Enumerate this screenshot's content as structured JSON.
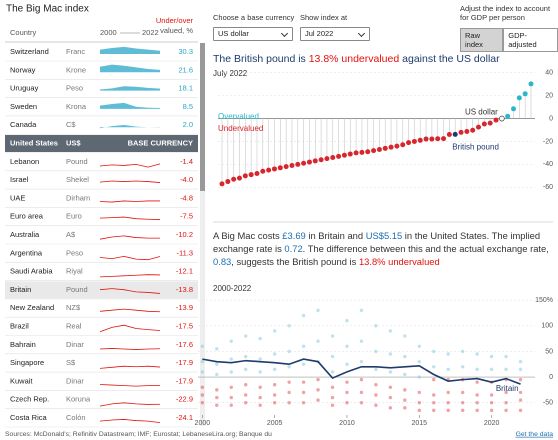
{
  "title": "The Big Mac index",
  "table": {
    "headers": {
      "country": "Country",
      "start": "2000",
      "end": "2022",
      "value_top": "Under/over",
      "value_bottom": "valued, %"
    },
    "base_row": 5,
    "highlight_row": 13,
    "over_color": "#2aa6c9",
    "under_color": "#e3120b",
    "rows": [
      {
        "country": "Switzerland",
        "currency": "Franc",
        "value": "30.3",
        "spark": [
          40,
          55,
          65,
          50,
          40,
          30
        ]
      },
      {
        "country": "Norway",
        "currency": "Krone",
        "value": "21.6",
        "spark": [
          50,
          70,
          60,
          45,
          30,
          22
        ]
      },
      {
        "country": "Uruguay",
        "currency": "Peso",
        "value": "18.1",
        "spark": [
          10,
          20,
          40,
          35,
          25,
          18
        ]
      },
      {
        "country": "Sweden",
        "currency": "Krona",
        "value": "8.5",
        "spark": [
          30,
          45,
          55,
          20,
          10,
          8
        ]
      },
      {
        "country": "Canada",
        "currency": "C$",
        "value": "2.0",
        "spark": [
          -10,
          10,
          20,
          5,
          0,
          2
        ]
      },
      {
        "country": "United States",
        "currency": "US$",
        "value": "BASE CURRENCY"
      },
      {
        "country": "Lebanon",
        "currency": "Pound",
        "value": "-1.4",
        "spark": [
          -20,
          -10,
          -15,
          -5,
          -30,
          -1
        ]
      },
      {
        "country": "Israel",
        "currency": "Shekel",
        "value": "-4.0",
        "spark": [
          0,
          10,
          5,
          10,
          5,
          -4
        ]
      },
      {
        "country": "UAE",
        "currency": "Dirham",
        "value": "-4.8",
        "spark": [
          -10,
          -15,
          -5,
          -10,
          -5,
          -5
        ]
      },
      {
        "country": "Euro area",
        "currency": "Euro",
        "value": "-7.5",
        "spark": [
          5,
          10,
          15,
          0,
          -5,
          -8
        ]
      },
      {
        "country": "Australia",
        "currency": "A$",
        "value": "-10.2",
        "spark": [
          -20,
          0,
          10,
          -5,
          -10,
          -10
        ]
      },
      {
        "country": "Argentina",
        "currency": "Peso",
        "value": "-11.3",
        "spark": [
          -20,
          -30,
          -10,
          -35,
          -40,
          -11
        ]
      },
      {
        "country": "Saudi Arabia",
        "currency": "Riyal",
        "value": "-12.1",
        "spark": [
          -30,
          -25,
          -20,
          -15,
          -10,
          -12
        ]
      },
      {
        "country": "Britain",
        "currency": "Pound",
        "value": "-13.8",
        "spark": [
          20,
          30,
          20,
          0,
          -5,
          -14
        ]
      },
      {
        "country": "New Zealand",
        "currency": "NZ$",
        "value": "-13.9",
        "spark": [
          -10,
          0,
          10,
          0,
          -10,
          -14
        ]
      },
      {
        "country": "Brazil",
        "currency": "Real",
        "value": "-17.5",
        "spark": [
          -30,
          10,
          30,
          0,
          -10,
          -18
        ]
      },
      {
        "country": "Bahrain",
        "currency": "Dinar",
        "value": "-17.6",
        "spark": [
          -20,
          -15,
          -20,
          -25,
          -20,
          -18
        ]
      },
      {
        "country": "Singapore",
        "currency": "S$",
        "value": "-17.9",
        "spark": [
          -30,
          -20,
          -10,
          -15,
          -10,
          -18
        ]
      },
      {
        "country": "Kuwait",
        "currency": "Dinar",
        "value": "-17.9",
        "spark": [
          -10,
          -15,
          -20,
          -25,
          -20,
          -18
        ]
      },
      {
        "country": "Czech Rep.",
        "currency": "Koruna",
        "value": "-22.9",
        "spark": [
          -40,
          -20,
          -10,
          -20,
          -25,
          -23
        ]
      },
      {
        "country": "Costa Rica",
        "currency": "Colón",
        "value": "-24.1",
        "spark": [
          -10,
          0,
          5,
          -5,
          -10,
          -24
        ]
      }
    ]
  },
  "controls": {
    "base_label": "Choose a base currency",
    "base_value": "US dollar",
    "date_label": "Show index at",
    "date_value": "Jul 2022",
    "adjust_label": "Adjust the index to account for GDP per person",
    "buttons": [
      "Raw index",
      "GDP-adjusted"
    ],
    "active_button": 0
  },
  "headline": {
    "parts": [
      {
        "text": "The British pound is ",
        "color": "#1f3a6e"
      },
      {
        "text": "13.8% undervalued",
        "color": "#e3120b"
      },
      {
        "text": " against the US dollar",
        "color": "#1f3a6e"
      }
    ]
  },
  "chart1": {
    "type": "dot",
    "subtitle": "July 2022",
    "labels": {
      "over": "Overvalued",
      "under": "Undervalued",
      "base": "US dollar",
      "highlight": "British pound"
    },
    "values": [
      -57,
      -55,
      -53,
      -52,
      -50,
      -49,
      -48,
      -46,
      -45,
      -44,
      -43,
      -42,
      -41,
      -40,
      -39,
      -38,
      -37,
      -36,
      -35,
      -34,
      -33,
      -32,
      -31,
      -30,
      -29.5,
      -29,
      -28,
      -27,
      -26,
      -25,
      -24.1,
      -22.9,
      -21,
      -20,
      -19,
      -17.9,
      -17.9,
      -17.6,
      -17.5,
      -13.9,
      -13.8,
      -12.1,
      -11.3,
      -10.2,
      -7.5,
      -4.8,
      -4,
      -1.4,
      0,
      2,
      8.5,
      18.1,
      21.6,
      30.3
    ],
    "base_index": 48,
    "highlight_index": 40,
    "over_color": "#2ab7c9",
    "under_color": "#d7262e",
    "highlight_color": "#1f3a6e",
    "ylim": [
      -65,
      45
    ],
    "yticks": [
      40,
      20,
      0,
      -20,
      -40,
      -60
    ]
  },
  "paragraph": {
    "parts": [
      {
        "text": "A Big Mac costs "
      },
      {
        "text": "£3.69",
        "color": "#1b6fb3"
      },
      {
        "text": " in Britain and "
      },
      {
        "text": "US$5.15",
        "color": "#1b6fb3"
      },
      {
        "text": " in the United States. The implied exchange rate is "
      },
      {
        "text": "0.72",
        "color": "#1b6fb3"
      },
      {
        "text": ". The difference between this and the actual exchange rate, "
      },
      {
        "text": "0.83",
        "color": "#1b6fb3"
      },
      {
        "text": ", suggests the British pound is "
      },
      {
        "text": "13.8% undervalued",
        "color": "#e3120b"
      }
    ]
  },
  "chart2": {
    "type": "line",
    "title": "2000-2022",
    "xlim": [
      1999.7,
      2023
    ],
    "xticks": [
      2000,
      2005,
      2010,
      2015,
      2020
    ],
    "ylim": [
      -74,
      160
    ],
    "yticks": [
      {
        "value": 150,
        "label": "150%"
      },
      100,
      50,
      0,
      -50
    ],
    "over_color": "#7cc6e0",
    "under_color": "#e0454d",
    "series": {
      "name": "Britain",
      "color": "#1f3a6e",
      "x": [
        2000,
        2001,
        2002,
        2003,
        2004,
        2005,
        2006,
        2007,
        2008,
        2009,
        2010,
        2011,
        2012,
        2013,
        2014,
        2015,
        2016,
        2017,
        2018,
        2019,
        2020,
        2021,
        2022
      ],
      "values": [
        35,
        30,
        28,
        32,
        30,
        28,
        25,
        35,
        30,
        -2,
        10,
        20,
        20,
        18,
        20,
        22,
        5,
        -8,
        -5,
        -3,
        -10,
        -3,
        -13.8
      ]
    },
    "cloud": {
      "x": [
        2000,
        2001,
        2002,
        2003,
        2004,
        2005,
        2006,
        2007,
        2008,
        2009,
        2010,
        2011,
        2012,
        2013,
        2014,
        2015,
        2016,
        2017,
        2018,
        2019,
        2020,
        2021,
        2022
      ],
      "values": [
        [
          60,
          30,
          10,
          -20,
          -35,
          -50
        ],
        [
          55,
          25,
          5,
          -25,
          -40,
          -55
        ],
        [
          70,
          35,
          10,
          -20,
          -40,
          -55
        ],
        [
          80,
          40,
          15,
          -15,
          -35,
          -50
        ],
        [
          75,
          35,
          10,
          -20,
          -40,
          -55
        ],
        [
          90,
          45,
          15,
          -15,
          -35,
          -50
        ],
        [
          100,
          50,
          20,
          -10,
          -30,
          -50
        ],
        [
          120,
          60,
          25,
          -10,
          -30,
          -50
        ],
        [
          130,
          70,
          30,
          -5,
          -25,
          -45
        ],
        [
          80,
          40,
          10,
          -20,
          -40,
          -55
        ],
        [
          110,
          60,
          25,
          -10,
          -30,
          -50
        ],
        [
          130,
          70,
          30,
          -5,
          -30,
          -50
        ],
        [
          100,
          50,
          15,
          -15,
          -35,
          -55
        ],
        [
          90,
          45,
          10,
          -20,
          -40,
          -60
        ],
        [
          80,
          40,
          5,
          -25,
          -45,
          -60
        ],
        [
          60,
          30,
          0,
          -30,
          -50,
          -65
        ],
        [
          50,
          20,
          -5,
          -35,
          -50,
          -65
        ],
        [
          45,
          15,
          -5,
          -30,
          -50,
          -65
        ],
        [
          50,
          20,
          -5,
          -30,
          -50,
          -65
        ],
        [
          45,
          15,
          -10,
          -35,
          -50,
          -65
        ],
        [
          40,
          15,
          -10,
          -35,
          -50,
          -65
        ],
        [
          40,
          15,
          -5,
          -30,
          -50,
          -65
        ],
        [
          30,
          15,
          -5,
          -30,
          -45,
          -65
        ]
      ]
    }
  },
  "footer": {
    "sources": "Sources: McDonald's; Refinitiv Datastream; IMF; Eurostat; LebaneseLira.org; Banque du",
    "link": "Get the data"
  }
}
